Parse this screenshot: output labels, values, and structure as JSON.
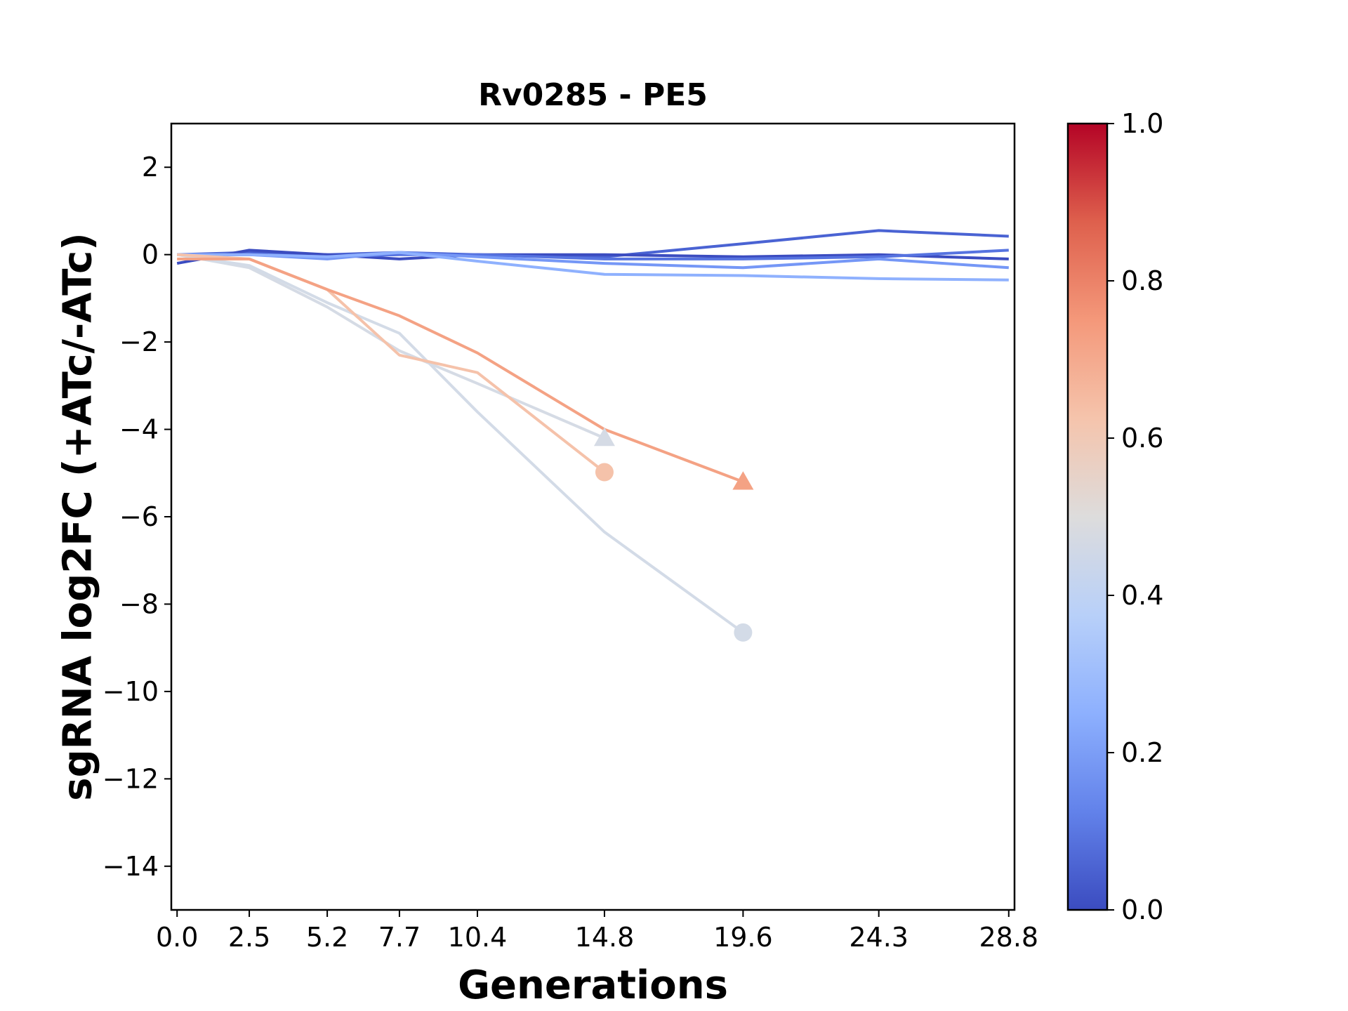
{
  "chart_data": {
    "type": "line",
    "title": "Rv0285 - PE5",
    "xlabel": "Generations",
    "ylabel": "sgRNA log2FC (+ATc/-ATc)",
    "xlim": [
      -0.2,
      29.0
    ],
    "ylim": [
      -15,
      3
    ],
    "x_ticks": [
      0.0,
      2.5,
      5.2,
      7.7,
      10.4,
      14.8,
      19.6,
      24.3,
      28.8
    ],
    "x_tick_labels": [
      "0.0",
      "2.5",
      "5.2",
      "7.7",
      "10.4",
      "14.8",
      "19.6",
      "24.3",
      "28.8"
    ],
    "y_ticks": [
      2,
      0,
      -2,
      -4,
      -6,
      -8,
      -10,
      -12,
      -14
    ],
    "y_tick_labels": [
      "2",
      "0",
      "−2",
      "−4",
      "−6",
      "−8",
      "−10",
      "−12",
      "−14"
    ],
    "colormap": "coolwarm",
    "colorbar": {
      "range": [
        0.0,
        1.0
      ],
      "ticks": [
        0.0,
        0.2,
        0.4,
        0.6,
        0.8,
        1.0
      ],
      "tick_labels": [
        "0.0",
        "0.2",
        "0.4",
        "0.6",
        "0.8",
        "1.0"
      ],
      "stops": [
        "#3b4cc0",
        "#6282ea",
        "#8db0fe",
        "#b8d0f9",
        "#dddcdc",
        "#f5c4ac",
        "#f4987a",
        "#de604d",
        "#b40426"
      ]
    },
    "series": [
      {
        "color_value": 0.05,
        "color": "#4a63d3",
        "x": [
          0.0,
          2.5,
          5.2,
          7.7,
          10.4,
          14.8,
          19.6,
          24.3,
          28.8
        ],
        "y": [
          0.0,
          0.05,
          0.0,
          0.05,
          0.0,
          -0.05,
          0.25,
          0.55,
          0.42
        ],
        "end_marker": null
      },
      {
        "color_value": 0.0,
        "color": "#3b4cc0",
        "x": [
          0.0,
          2.5,
          5.2,
          7.7,
          10.4,
          14.8,
          19.6,
          24.3,
          28.8
        ],
        "y": [
          -0.2,
          0.1,
          0.0,
          -0.1,
          0.0,
          0.0,
          -0.05,
          0.0,
          -0.1
        ],
        "end_marker": null
      },
      {
        "color_value": 0.1,
        "color": "#5673e0",
        "x": [
          0.0,
          2.5,
          5.2,
          7.7,
          10.4,
          14.8,
          19.6,
          24.3,
          28.8
        ],
        "y": [
          0.0,
          0.0,
          -0.05,
          0.0,
          0.0,
          -0.1,
          -0.1,
          -0.05,
          0.1
        ],
        "end_marker": null
      },
      {
        "color_value": 0.2,
        "color": "#7597f6",
        "x": [
          0.0,
          2.5,
          5.2,
          7.7,
          10.4,
          14.8,
          19.6,
          24.3,
          28.8
        ],
        "y": [
          0.0,
          0.0,
          -0.1,
          0.05,
          -0.05,
          -0.2,
          -0.3,
          -0.1,
          -0.3
        ],
        "end_marker": null
      },
      {
        "color_value": 0.28,
        "color": "#8fb1fe",
        "x": [
          0.0,
          2.5,
          5.2,
          7.7,
          10.4,
          14.8,
          19.6,
          24.3,
          28.8
        ],
        "y": [
          0.0,
          0.0,
          -0.05,
          0.05,
          -0.15,
          -0.45,
          -0.48,
          -0.55,
          -0.58
        ],
        "end_marker": null
      },
      {
        "color_value": 0.47,
        "color": "#d5dbe5",
        "x": [
          0.0,
          2.5,
          5.2,
          7.7,
          10.4,
          14.8
        ],
        "y": [
          0.0,
          -0.3,
          -1.2,
          -2.2,
          -2.95,
          -4.2
        ],
        "end_marker": "triangle"
      },
      {
        "color_value": 0.46,
        "color": "#d3dbe7",
        "x": [
          0.0,
          2.5,
          5.2,
          7.7,
          10.4,
          14.8,
          19.6
        ],
        "y": [
          0.0,
          -0.25,
          -1.1,
          -1.8,
          -3.6,
          -6.35,
          -8.65
        ],
        "end_marker": "circle"
      },
      {
        "color_value": 0.65,
        "color": "#f5c2aa",
        "x": [
          0.0,
          2.5,
          5.2,
          7.7,
          10.4,
          14.8
        ],
        "y": [
          0.0,
          -0.1,
          -0.8,
          -2.3,
          -2.7,
          -4.98
        ],
        "end_marker": "circle"
      },
      {
        "color_value": 0.75,
        "color": "#f4a284",
        "x": [
          0.0,
          2.5,
          5.2,
          7.7,
          10.4,
          14.8,
          19.6
        ],
        "y": [
          -0.1,
          -0.1,
          -0.8,
          -1.4,
          -2.25,
          -4.0,
          -5.2
        ],
        "end_marker": "triangle"
      }
    ]
  }
}
